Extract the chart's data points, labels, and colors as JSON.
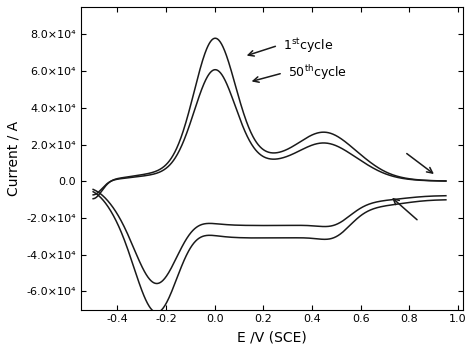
{
  "xlabel": "E /V (SCE)",
  "ylabel": "Current / A",
  "xlim": [
    -0.55,
    1.02
  ],
  "ylim": [
    -70000.0,
    95000.0
  ],
  "xticks": [
    -0.4,
    -0.2,
    0.0,
    0.2,
    0.4,
    0.6,
    0.8,
    1.0
  ],
  "yticks": [
    -60000.0,
    -40000.0,
    -20000.0,
    0,
    20000.0,
    40000.0,
    60000.0,
    80000.0
  ],
  "ytick_labels": [
    "-6.0×10⁴",
    "-4.0×10⁴",
    "-2.0×10⁴",
    "0.0",
    "2.0×10⁴",
    "4.0×10⁴",
    "6.0×10⁴",
    "8.0×10⁴"
  ],
  "line_color": "#1a1a1a",
  "background_color": "#ffffff"
}
